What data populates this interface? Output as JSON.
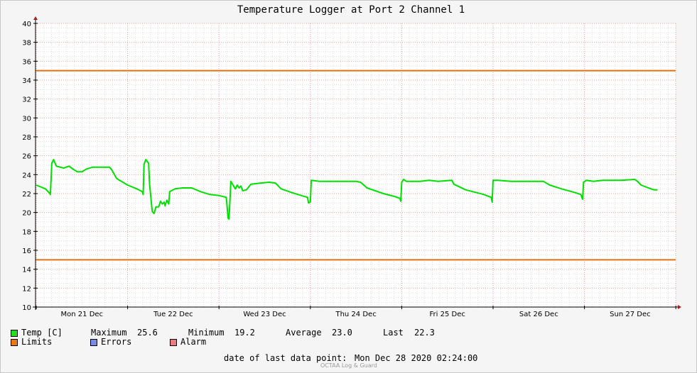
{
  "chart_data": {
    "type": "line",
    "title": "Temperature Logger at Port 2 Channel 1",
    "ylim": [
      10,
      40
    ],
    "yticks": [
      10,
      12,
      14,
      16,
      18,
      20,
      22,
      24,
      26,
      28,
      30,
      32,
      34,
      36,
      38,
      40
    ],
    "xticks": [
      {
        "x": 0.5,
        "label": "Mon 21 Dec"
      },
      {
        "x": 1.5,
        "label": "Tue 22 Dec"
      },
      {
        "x": 2.5,
        "label": "Wed 23 Dec"
      },
      {
        "x": 3.5,
        "label": "Thu 24 Dec"
      },
      {
        "x": 4.5,
        "label": "Fri 25 Dec"
      },
      {
        "x": 5.5,
        "label": "Sat 26 Dec"
      },
      {
        "x": 6.5,
        "label": "Sun 27 Dec"
      }
    ],
    "xlim": [
      0,
      7.0
    ],
    "grid": true,
    "series": [
      {
        "name": "Temp [C]",
        "color": "#00e000",
        "points": [
          [
            0.0,
            22.9
          ],
          [
            0.1,
            22.5
          ],
          [
            0.15,
            22.0
          ],
          [
            0.155,
            21.9
          ],
          [
            0.17,
            25.2
          ],
          [
            0.19,
            25.6
          ],
          [
            0.22,
            24.9
          ],
          [
            0.3,
            24.7
          ],
          [
            0.36,
            24.9
          ],
          [
            0.4,
            24.6
          ],
          [
            0.45,
            24.3
          ],
          [
            0.5,
            24.3
          ],
          [
            0.55,
            24.6
          ],
          [
            0.62,
            24.8
          ],
          [
            0.7,
            24.8
          ],
          [
            0.8,
            24.8
          ],
          [
            0.82,
            24.6
          ],
          [
            0.88,
            23.6
          ],
          [
            1.0,
            22.9
          ],
          [
            1.1,
            22.5
          ],
          [
            1.16,
            22.2
          ],
          [
            1.17,
            21.9
          ],
          [
            1.18,
            25.1
          ],
          [
            1.2,
            25.6
          ],
          [
            1.23,
            25.2
          ],
          [
            1.24,
            23.0
          ],
          [
            1.27,
            20.1
          ],
          [
            1.29,
            19.9
          ],
          [
            1.31,
            20.6
          ],
          [
            1.34,
            20.6
          ],
          [
            1.36,
            21.2
          ],
          [
            1.38,
            20.9
          ],
          [
            1.4,
            21.1
          ],
          [
            1.41,
            20.7
          ],
          [
            1.43,
            21.3
          ],
          [
            1.45,
            20.9
          ],
          [
            1.46,
            22.2
          ],
          [
            1.52,
            22.5
          ],
          [
            1.6,
            22.6
          ],
          [
            1.7,
            22.6
          ],
          [
            1.8,
            22.2
          ],
          [
            1.9,
            21.9
          ],
          [
            2.0,
            21.8
          ],
          [
            2.08,
            21.6
          ],
          [
            2.1,
            19.4
          ],
          [
            2.11,
            19.3
          ],
          [
            2.12,
            21.2
          ],
          [
            2.13,
            23.3
          ],
          [
            2.16,
            22.8
          ],
          [
            2.18,
            22.5
          ],
          [
            2.2,
            22.9
          ],
          [
            2.22,
            22.6
          ],
          [
            2.24,
            22.8
          ],
          [
            2.26,
            22.3
          ],
          [
            2.3,
            22.4
          ],
          [
            2.35,
            23.0
          ],
          [
            2.45,
            23.1
          ],
          [
            2.55,
            23.2
          ],
          [
            2.62,
            23.1
          ],
          [
            2.68,
            22.5
          ],
          [
            2.8,
            22.1
          ],
          [
            2.9,
            21.8
          ],
          [
            2.97,
            21.6
          ],
          [
            2.98,
            21.0
          ],
          [
            3.0,
            21.1
          ],
          [
            3.01,
            23.4
          ],
          [
            3.1,
            23.3
          ],
          [
            3.2,
            23.3
          ],
          [
            3.3,
            23.3
          ],
          [
            3.4,
            23.3
          ],
          [
            3.5,
            23.3
          ],
          [
            3.55,
            23.2
          ],
          [
            3.62,
            22.6
          ],
          [
            3.8,
            22.0
          ],
          [
            3.92,
            21.7
          ],
          [
            3.98,
            21.5
          ],
          [
            3.99,
            21.2
          ],
          [
            4.0,
            23.2
          ],
          [
            4.02,
            23.5
          ],
          [
            4.05,
            23.3
          ],
          [
            4.2,
            23.3
          ],
          [
            4.3,
            23.4
          ],
          [
            4.4,
            23.3
          ],
          [
            4.55,
            23.4
          ],
          [
            4.57,
            23.0
          ],
          [
            4.7,
            22.4
          ],
          [
            4.9,
            21.9
          ],
          [
            4.98,
            21.6
          ],
          [
            4.99,
            21.1
          ],
          [
            5.0,
            23.4
          ],
          [
            5.05,
            23.4
          ],
          [
            5.2,
            23.3
          ],
          [
            5.3,
            23.3
          ],
          [
            5.4,
            23.3
          ],
          [
            5.55,
            23.3
          ],
          [
            5.62,
            22.9
          ],
          [
            5.75,
            22.5
          ],
          [
            5.9,
            22.1
          ],
          [
            5.96,
            21.9
          ],
          [
            5.98,
            21.4
          ],
          [
            5.99,
            23.2
          ],
          [
            6.02,
            23.4
          ],
          [
            6.1,
            23.3
          ],
          [
            6.2,
            23.4
          ],
          [
            6.3,
            23.4
          ],
          [
            6.4,
            23.4
          ],
          [
            6.55,
            23.5
          ],
          [
            6.58,
            23.3
          ],
          [
            6.62,
            22.9
          ],
          [
            6.7,
            22.6
          ],
          [
            6.76,
            22.4
          ],
          [
            6.8,
            22.4
          ]
        ]
      },
      {
        "name": "Limits",
        "color": "#e07010",
        "values": [
          35,
          15
        ]
      }
    ]
  },
  "legend": {
    "temp": {
      "label": "Temp [C]",
      "color": "#22dd22"
    },
    "limits": {
      "label": "Limits",
      "color": "#ee7711"
    },
    "errors": {
      "label": "Errors",
      "color": "#7a8ae8"
    },
    "alarm": {
      "label": "Alarm",
      "color": "#ee7a82"
    },
    "stats": {
      "max_label": "Maximum",
      "max_value": "25.6",
      "min_label": "Minimum",
      "min_value": "19.2",
      "avg_label": "Average",
      "avg_value": "23.0",
      "last_label": "Last",
      "last_value": "22.3"
    }
  },
  "footer": {
    "last_point_label": "date of last data point:",
    "last_point_value": "Mon Dec 28 2020 02:24:00",
    "watermark": "OCTAA Log & Guard"
  }
}
